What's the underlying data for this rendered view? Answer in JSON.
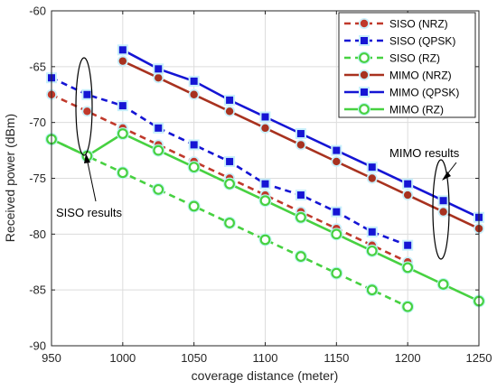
{
  "chart_data": {
    "type": "line",
    "xlabel": "coverage distance (meter)",
    "ylabel": "Received power (dBm)",
    "xlim": [
      950,
      1250
    ],
    "ylim": [
      -90,
      -60
    ],
    "xticks": [
      950,
      1000,
      1050,
      1100,
      1150,
      1200,
      1250
    ],
    "yticks": [
      -90,
      -85,
      -80,
      -75,
      -70,
      -65,
      -60
    ],
    "grid": true,
    "legend_position": "top-right",
    "series": [
      {
        "name": "SISO (NRZ)",
        "color": "#c0392b",
        "line": "dashed",
        "marker": "circle",
        "x": [
          950,
          975,
          1000,
          1025,
          1050,
          1075,
          1100,
          1125,
          1150,
          1175,
          1200
        ],
        "y": [
          -67.5,
          -69,
          -70.5,
          -72,
          -73.5,
          -75,
          -76.5,
          -78,
          -79.5,
          -81,
          -82.5
        ]
      },
      {
        "name": "SISO (QPSK)",
        "color": "#1515d4",
        "line": "dashed",
        "marker": "square",
        "x": [
          950,
          975,
          1000,
          1025,
          1050,
          1075,
          1100,
          1125,
          1150,
          1175,
          1200
        ],
        "y": [
          -66,
          -67.5,
          -68.5,
          -70.5,
          -72,
          -73.5,
          -75.5,
          -76.5,
          -78,
          -79.8,
          -81
        ]
      },
      {
        "name": "SISO (RZ)",
        "color": "#47d141",
        "line": "dashed",
        "marker": "circle-open",
        "x": [
          950,
          975,
          1000,
          1025,
          1050,
          1075,
          1100,
          1125,
          1150,
          1175,
          1200
        ],
        "y": [
          -71.5,
          -73,
          -74.5,
          -76,
          -77.5,
          -79,
          -80.5,
          -82,
          -83.5,
          -85,
          -86.5
        ]
      },
      {
        "name": "MIMO (NRZ)",
        "color": "#a8321f",
        "line": "solid",
        "marker": "circle",
        "x": [
          1000,
          1025,
          1050,
          1075,
          1100,
          1125,
          1150,
          1175,
          1200,
          1225,
          1250
        ],
        "y": [
          -64.5,
          -66,
          -67.5,
          -69,
          -70.5,
          -72,
          -73.5,
          -75,
          -76.5,
          -78,
          -79.5
        ]
      },
      {
        "name": "MIMO (QPSK)",
        "color": "#1515d4",
        "line": "solid",
        "marker": "square",
        "x": [
          1000,
          1025,
          1050,
          1075,
          1100,
          1125,
          1150,
          1175,
          1200,
          1225,
          1250
        ],
        "y": [
          -63.5,
          -65.2,
          -66.3,
          -68,
          -69.5,
          -71,
          -72.5,
          -74,
          -75.5,
          -77,
          -78.5
        ]
      },
      {
        "name": "MIMO (RZ)",
        "color": "#47d141",
        "line": "solid",
        "marker": "circle-open",
        "x": [
          950,
          975,
          1000,
          1025,
          1050,
          1075,
          1100,
          1125,
          1150,
          1175,
          1200,
          1225,
          1250
        ],
        "y": [
          -71.5,
          -73,
          -71,
          -72.5,
          -74,
          -75.5,
          -77,
          -78.5,
          -80,
          -81.5,
          -83,
          -84.5,
          -86
        ]
      }
    ],
    "annotations": [
      {
        "text": "MIMO results"
      },
      {
        "text": "SISO results"
      }
    ]
  }
}
